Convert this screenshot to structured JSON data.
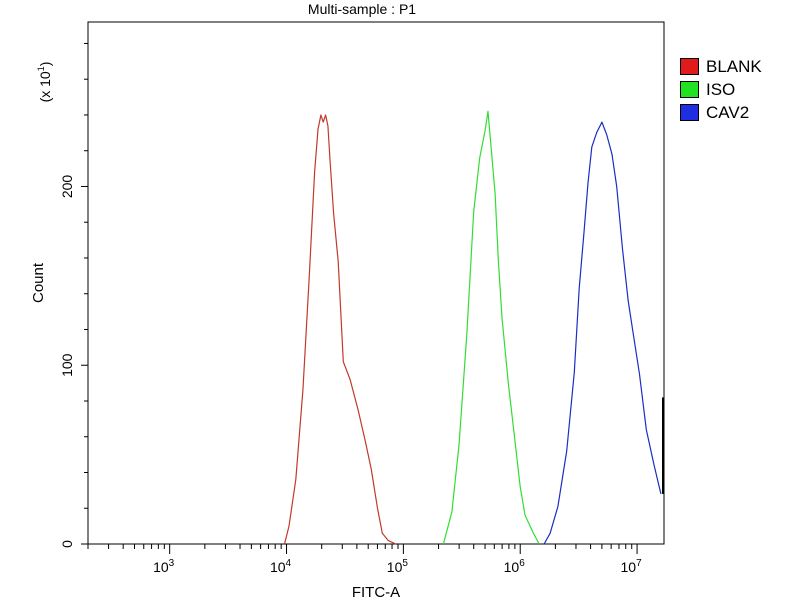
{
  "chart_data": {
    "type": "line",
    "title": "Multi-sample : P1",
    "xlabel": "FITC-A",
    "ylabel": "Count",
    "y_multiplier": "(x 10",
    "y_multiplier_exp": "1",
    "y_multiplier_close": ")",
    "x_scale": "log",
    "xlim": [
      200,
      17000000
    ],
    "ylim": [
      0,
      292
    ],
    "x_ticks": [
      {
        "base": "10",
        "exp": "3",
        "value": 1000
      },
      {
        "base": "10",
        "exp": "4",
        "value": 10000
      },
      {
        "base": "10",
        "exp": "5",
        "value": 100000
      },
      {
        "base": "10",
        "exp": "6",
        "value": 1000000
      },
      {
        "base": "10",
        "exp": "7",
        "value": 10000000
      }
    ],
    "y_ticks": [
      {
        "label": "0",
        "value": 0
      },
      {
        "label": "100",
        "value": 100
      },
      {
        "label": "200",
        "value": 200
      }
    ],
    "legend_position": "top-right, outside plot",
    "series": [
      {
        "name": "BLANK",
        "color": "#c0392b",
        "x": [
          9600,
          10500,
          12000,
          13800,
          15600,
          17400,
          18600,
          19700,
          20600,
          21600,
          22600,
          23600,
          25300,
          27700,
          30600,
          35000,
          41000,
          47000,
          53000,
          60000,
          66000,
          74000,
          86000
        ],
        "y": [
          0,
          10,
          36,
          86,
          148,
          208,
          232,
          240,
          236,
          240,
          234,
          214,
          185,
          158,
          102,
          92,
          75,
          58,
          42,
          20,
          6,
          2,
          0
        ]
      },
      {
        "name": "ISO",
        "color": "#33dd33",
        "x": [
          220000,
          260000,
          300000,
          350000,
          400000,
          450000,
          500000,
          530000,
          560000,
          610000,
          650000,
          700000,
          790000,
          900000,
          1000000,
          1100000,
          1300000,
          1450000
        ],
        "y": [
          0,
          18,
          56,
          118,
          186,
          216,
          231,
          242,
          224,
          196,
          158,
          126,
          90,
          58,
          32,
          16,
          6,
          0
        ]
      },
      {
        "name": "CAV2",
        "color": "#1a2ec0",
        "x": [
          1600000,
          1800000,
          2100000,
          2500000,
          2900000,
          3200000,
          3500000,
          3800000,
          4100000,
          4500000,
          5000000,
          5500000,
          6100000,
          6700000,
          7500000,
          8400000,
          9300000,
          10500000,
          12000000,
          14000000,
          16000000
        ],
        "y": [
          0,
          6,
          21,
          52,
          96,
          143,
          173,
          202,
          222,
          230,
          236,
          229,
          218,
          200,
          165,
          136,
          117,
          95,
          64,
          44,
          28
        ]
      }
    ]
  }
}
